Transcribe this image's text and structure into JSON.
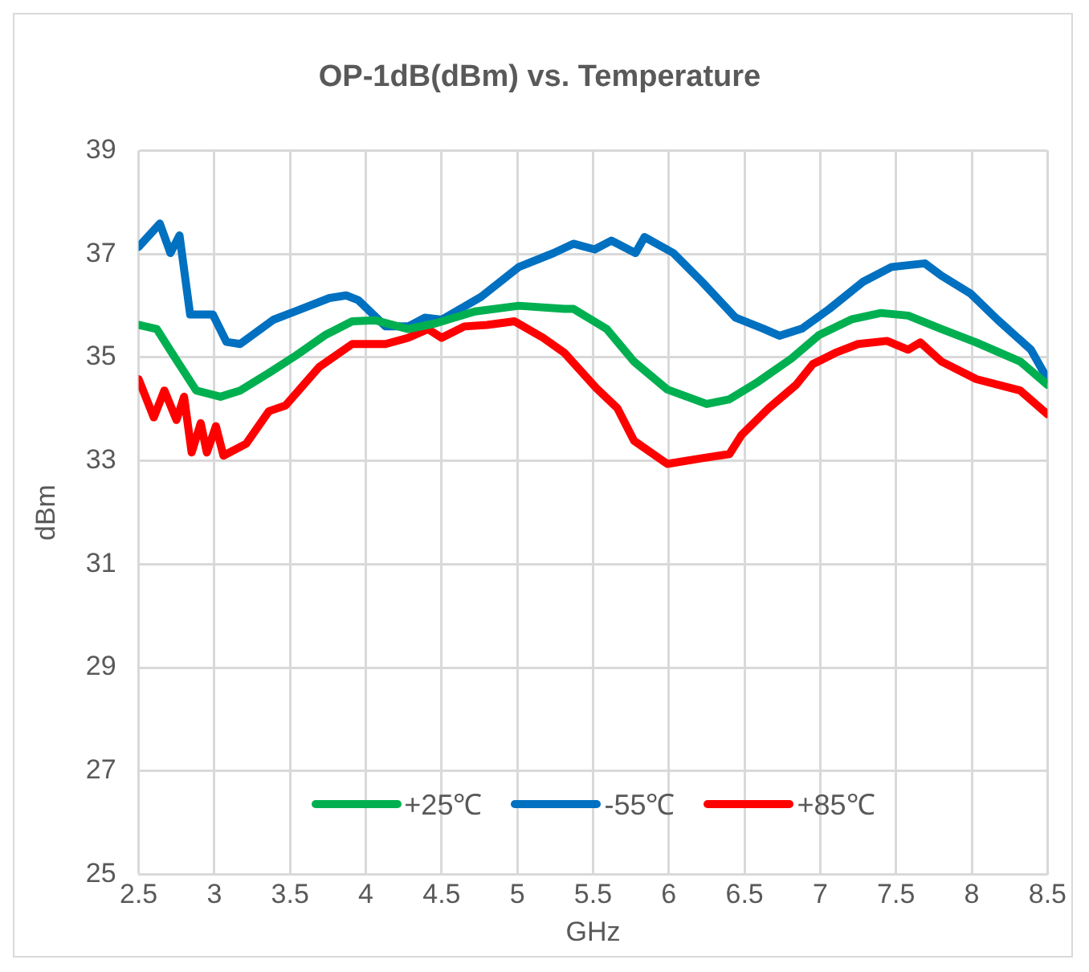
{
  "chart_data": {
    "type": "line",
    "title": "OP-1dB(dBm) vs. Temperature",
    "xlabel": "GHz",
    "ylabel": "dBm",
    "xlim": [
      2.5,
      8.5
    ],
    "xticks": [
      2.5,
      3,
      3.5,
      4,
      4.5,
      5,
      5.5,
      6,
      6.5,
      7,
      7.5,
      8,
      8.5
    ],
    "ylim": [
      25,
      39
    ],
    "yticks": [
      25,
      27,
      29,
      31,
      33,
      35,
      37,
      39
    ],
    "grid": true,
    "legend": "bottom",
    "marker": "none",
    "line_style": "solid",
    "series": [
      {
        "name": "+25℃",
        "color": "#00b050",
        "x": [
          2.5,
          2.62,
          2.73,
          2.88,
          3.04,
          3.17,
          3.36,
          3.54,
          3.73,
          3.91,
          4.06,
          4.28,
          4.46,
          4.72,
          5.01,
          5.31,
          5.37,
          5.59,
          5.77,
          5.99,
          6.25,
          6.4,
          6.59,
          6.81,
          6.99,
          7.21,
          7.4,
          7.58,
          7.8,
          8.03,
          8.32,
          8.5
        ],
        "values": [
          35.63,
          35.55,
          35.04,
          34.36,
          34.24,
          34.36,
          34.7,
          35.04,
          35.43,
          35.7,
          35.72,
          35.55,
          35.66,
          35.89,
          36.0,
          35.94,
          35.94,
          35.55,
          34.92,
          34.38,
          34.1,
          34.19,
          34.53,
          34.98,
          35.43,
          35.74,
          35.86,
          35.81,
          35.55,
          35.29,
          34.92,
          34.47
        ]
      },
      {
        "name": "-55℃",
        "color": "#0070c0",
        "x": [
          2.5,
          2.64,
          2.71,
          2.77,
          2.84,
          2.99,
          3.08,
          3.17,
          3.39,
          3.54,
          3.76,
          3.87,
          3.95,
          4.13,
          4.28,
          4.39,
          4.5,
          4.76,
          5.01,
          5.24,
          5.37,
          5.51,
          5.62,
          5.78,
          5.84,
          6.03,
          6.22,
          6.44,
          6.62,
          6.73,
          6.88,
          7.06,
          7.28,
          7.47,
          7.69,
          7.8,
          7.99,
          8.17,
          8.39,
          8.5
        ],
        "values": [
          37.14,
          37.59,
          37.02,
          37.36,
          35.83,
          35.83,
          35.3,
          35.26,
          35.73,
          35.9,
          36.15,
          36.2,
          36.11,
          35.6,
          35.6,
          35.77,
          35.73,
          36.17,
          36.75,
          37.02,
          37.2,
          37.09,
          37.26,
          37.02,
          37.33,
          37.02,
          36.46,
          35.77,
          35.56,
          35.42,
          35.56,
          35.94,
          36.46,
          36.75,
          36.82,
          36.58,
          36.24,
          35.73,
          35.15,
          34.58
        ]
      },
      {
        "name": "+85℃",
        "color": "#ff0000",
        "x": [
          2.5,
          2.6,
          2.67,
          2.75,
          2.8,
          2.85,
          2.91,
          2.95,
          3.01,
          3.06,
          3.21,
          3.36,
          3.47,
          3.69,
          3.91,
          4.13,
          4.28,
          4.41,
          4.5,
          4.65,
          4.8,
          4.98,
          5.17,
          5.31,
          5.52,
          5.66,
          5.77,
          5.99,
          6.22,
          6.4,
          6.48,
          6.66,
          6.84,
          6.95,
          7.1,
          7.25,
          7.44,
          7.58,
          7.66,
          7.8,
          8.03,
          8.32,
          8.5
        ],
        "values": [
          34.58,
          33.84,
          34.36,
          33.79,
          34.24,
          33.16,
          33.73,
          33.16,
          33.67,
          33.1,
          33.33,
          33.96,
          34.07,
          34.81,
          35.26,
          35.26,
          35.38,
          35.55,
          35.38,
          35.6,
          35.63,
          35.7,
          35.38,
          35.09,
          34.41,
          34.02,
          33.39,
          32.94,
          33.05,
          33.13,
          33.5,
          34.02,
          34.47,
          34.87,
          35.09,
          35.26,
          35.32,
          35.15,
          35.29,
          34.92,
          34.58,
          34.36,
          33.9
        ]
      }
    ]
  }
}
